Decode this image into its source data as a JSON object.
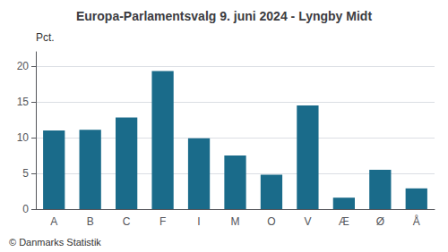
{
  "chart_data": {
    "type": "bar",
    "title": "Europa-Parlamentsvalg 9. juni 2024 - Lyngby Midt",
    "ylabel": "Pct.",
    "footer": "© Danmarks Statistik",
    "categories": [
      "A",
      "B",
      "C",
      "F",
      "I",
      "M",
      "O",
      "V",
      "Æ",
      "Ø",
      "Å"
    ],
    "values": [
      11.0,
      11.1,
      12.8,
      19.3,
      9.9,
      7.5,
      4.8,
      14.5,
      1.6,
      5.5,
      2.9
    ],
    "color": "#1a6b8a",
    "ylim": [
      0,
      22
    ],
    "yticks": [
      0,
      5,
      10,
      15,
      20
    ],
    "grid": true
  }
}
